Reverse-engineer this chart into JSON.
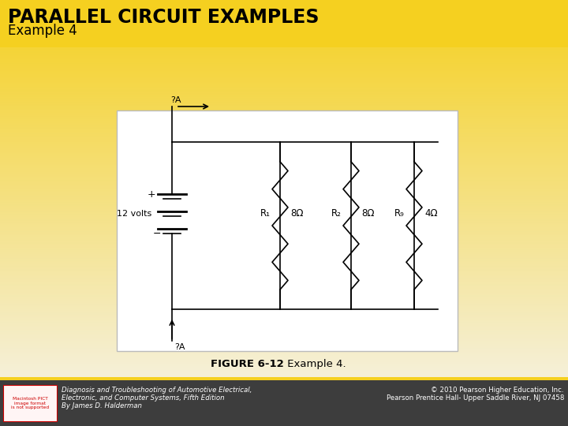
{
  "title": "PARALLEL CIRCUIT EXAMPLES",
  "subtitle": "Example 4",
  "bg_color_top": "#F5D020",
  "bg_color_bottom": "#F5F0D8",
  "footer_bg": "#3a3a3a",
  "footer_left_line1": "Diagnosis and Troubleshooting of Automotive Electrical,",
  "footer_left_line2": "Electronic, and Computer Systems, Fifth Edition",
  "footer_left_line3": "By James D. Halderman",
  "footer_right_line1": "© 2010 Pearson Higher Education, Inc.",
  "footer_right_line2": "Pearson Prentice Hall- Upper Saddle River, NJ 07458",
  "figure_caption_bold": "FIGURE 6-12",
  "figure_caption_normal": " Example 4.",
  "circuit_bg": "#ffffff",
  "voltage": "12 volts",
  "current_label": "?A",
  "resistors": [
    {
      "label": "R₁",
      "value": "8Ω"
    },
    {
      "label": "R₂",
      "value": "8Ω"
    },
    {
      "label": "R₉",
      "value": "4Ω"
    }
  ]
}
